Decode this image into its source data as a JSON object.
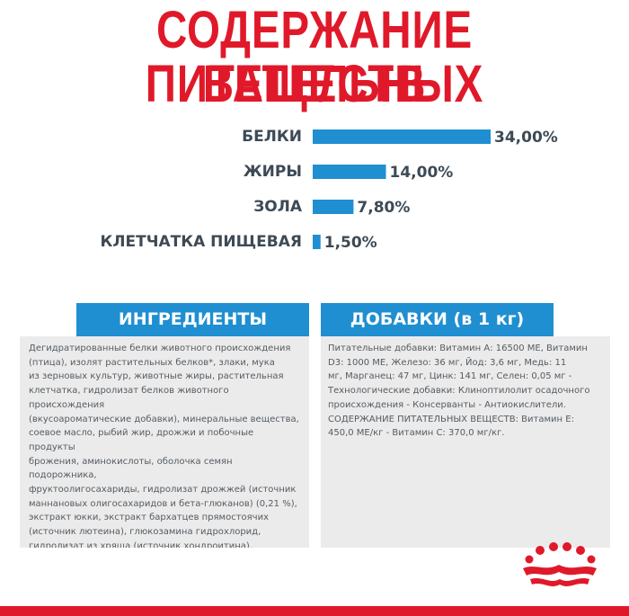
{
  "title": {
    "line1": "СОДЕРЖАНИЕ ПИТАТЕЛЬНЫХ",
    "line2": "ВЕЩЕСТВ"
  },
  "chart_data": {
    "type": "bar",
    "orientation": "horizontal",
    "categories": [
      "БЕЛКИ",
      "ЖИРЫ",
      "ЗОЛА",
      "КЛЕТЧАТКА ПИЩЕВАЯ"
    ],
    "values": [
      34.0,
      14.0,
      7.8,
      1.5
    ],
    "value_labels": [
      "34,00%",
      "14,00%",
      "7,80%",
      "1,50%"
    ],
    "unit": "%",
    "bar_color": "#1f8fd1",
    "xlim": [
      0,
      34
    ],
    "grid": false,
    "legend": "none"
  },
  "ingredients": {
    "header": "ИНГРЕДИЕНТЫ",
    "text": "Дегидратированные белки животного происхождения\n(птица), изолят растительных белков*, злаки, мука\nиз зерновых культур, животные жиры, растительная\nклетчатка, гидролизат белков животного происхождения\n(вкусоароматические добавки), минеральные вещества,\nсоевое масло, рыбий жир, дрожжи и побочные продукты\nброжения, аминокислоты, оболочка семян подорожника,\nфруктоолигосахариды, гидролизат дрожжей (источник\nманнановых олигосахаридов и бета-глюканов) (0,21 %),\nэкстракт юкки, экстракт бархатцев прямостоячих\n(источник лютеина), глюкозамина гидрохлорид,\nгидролизат из хряща (источник хондроитина).\n*L.I.P.: специально отобранные белки с высокой степенью\nусвояемости."
  },
  "additives": {
    "header": "ДОБАВКИ (в 1 кг)",
    "text": "Питательные добавки: Витамин А: 16500 МЕ, Витамин\nD3: 1000 МЕ, Железо: 36 мг, Йод: 3,6 мг, Медь: 11\nмг, Марганец: 47 мг, Цинк: 141 мг, Селен: 0,05 мг -\nТехнологические добавки: Клиноптилолит осадочного\nпроисхождения - Консерванты - Антиокислители.\nСОДЕРЖАНИЕ ПИТАТЕЛЬНЫХ ВЕЩЕСТВ: Витамин Е:\n450,0 МЕ/кг - Витамин С: 370,0 мг/кг."
  },
  "colors": {
    "accent_red": "#e0192a",
    "accent_blue": "#1f8fd1",
    "panel_gray": "#ebebeb"
  },
  "logo": {
    "icon": "crown-icon"
  }
}
